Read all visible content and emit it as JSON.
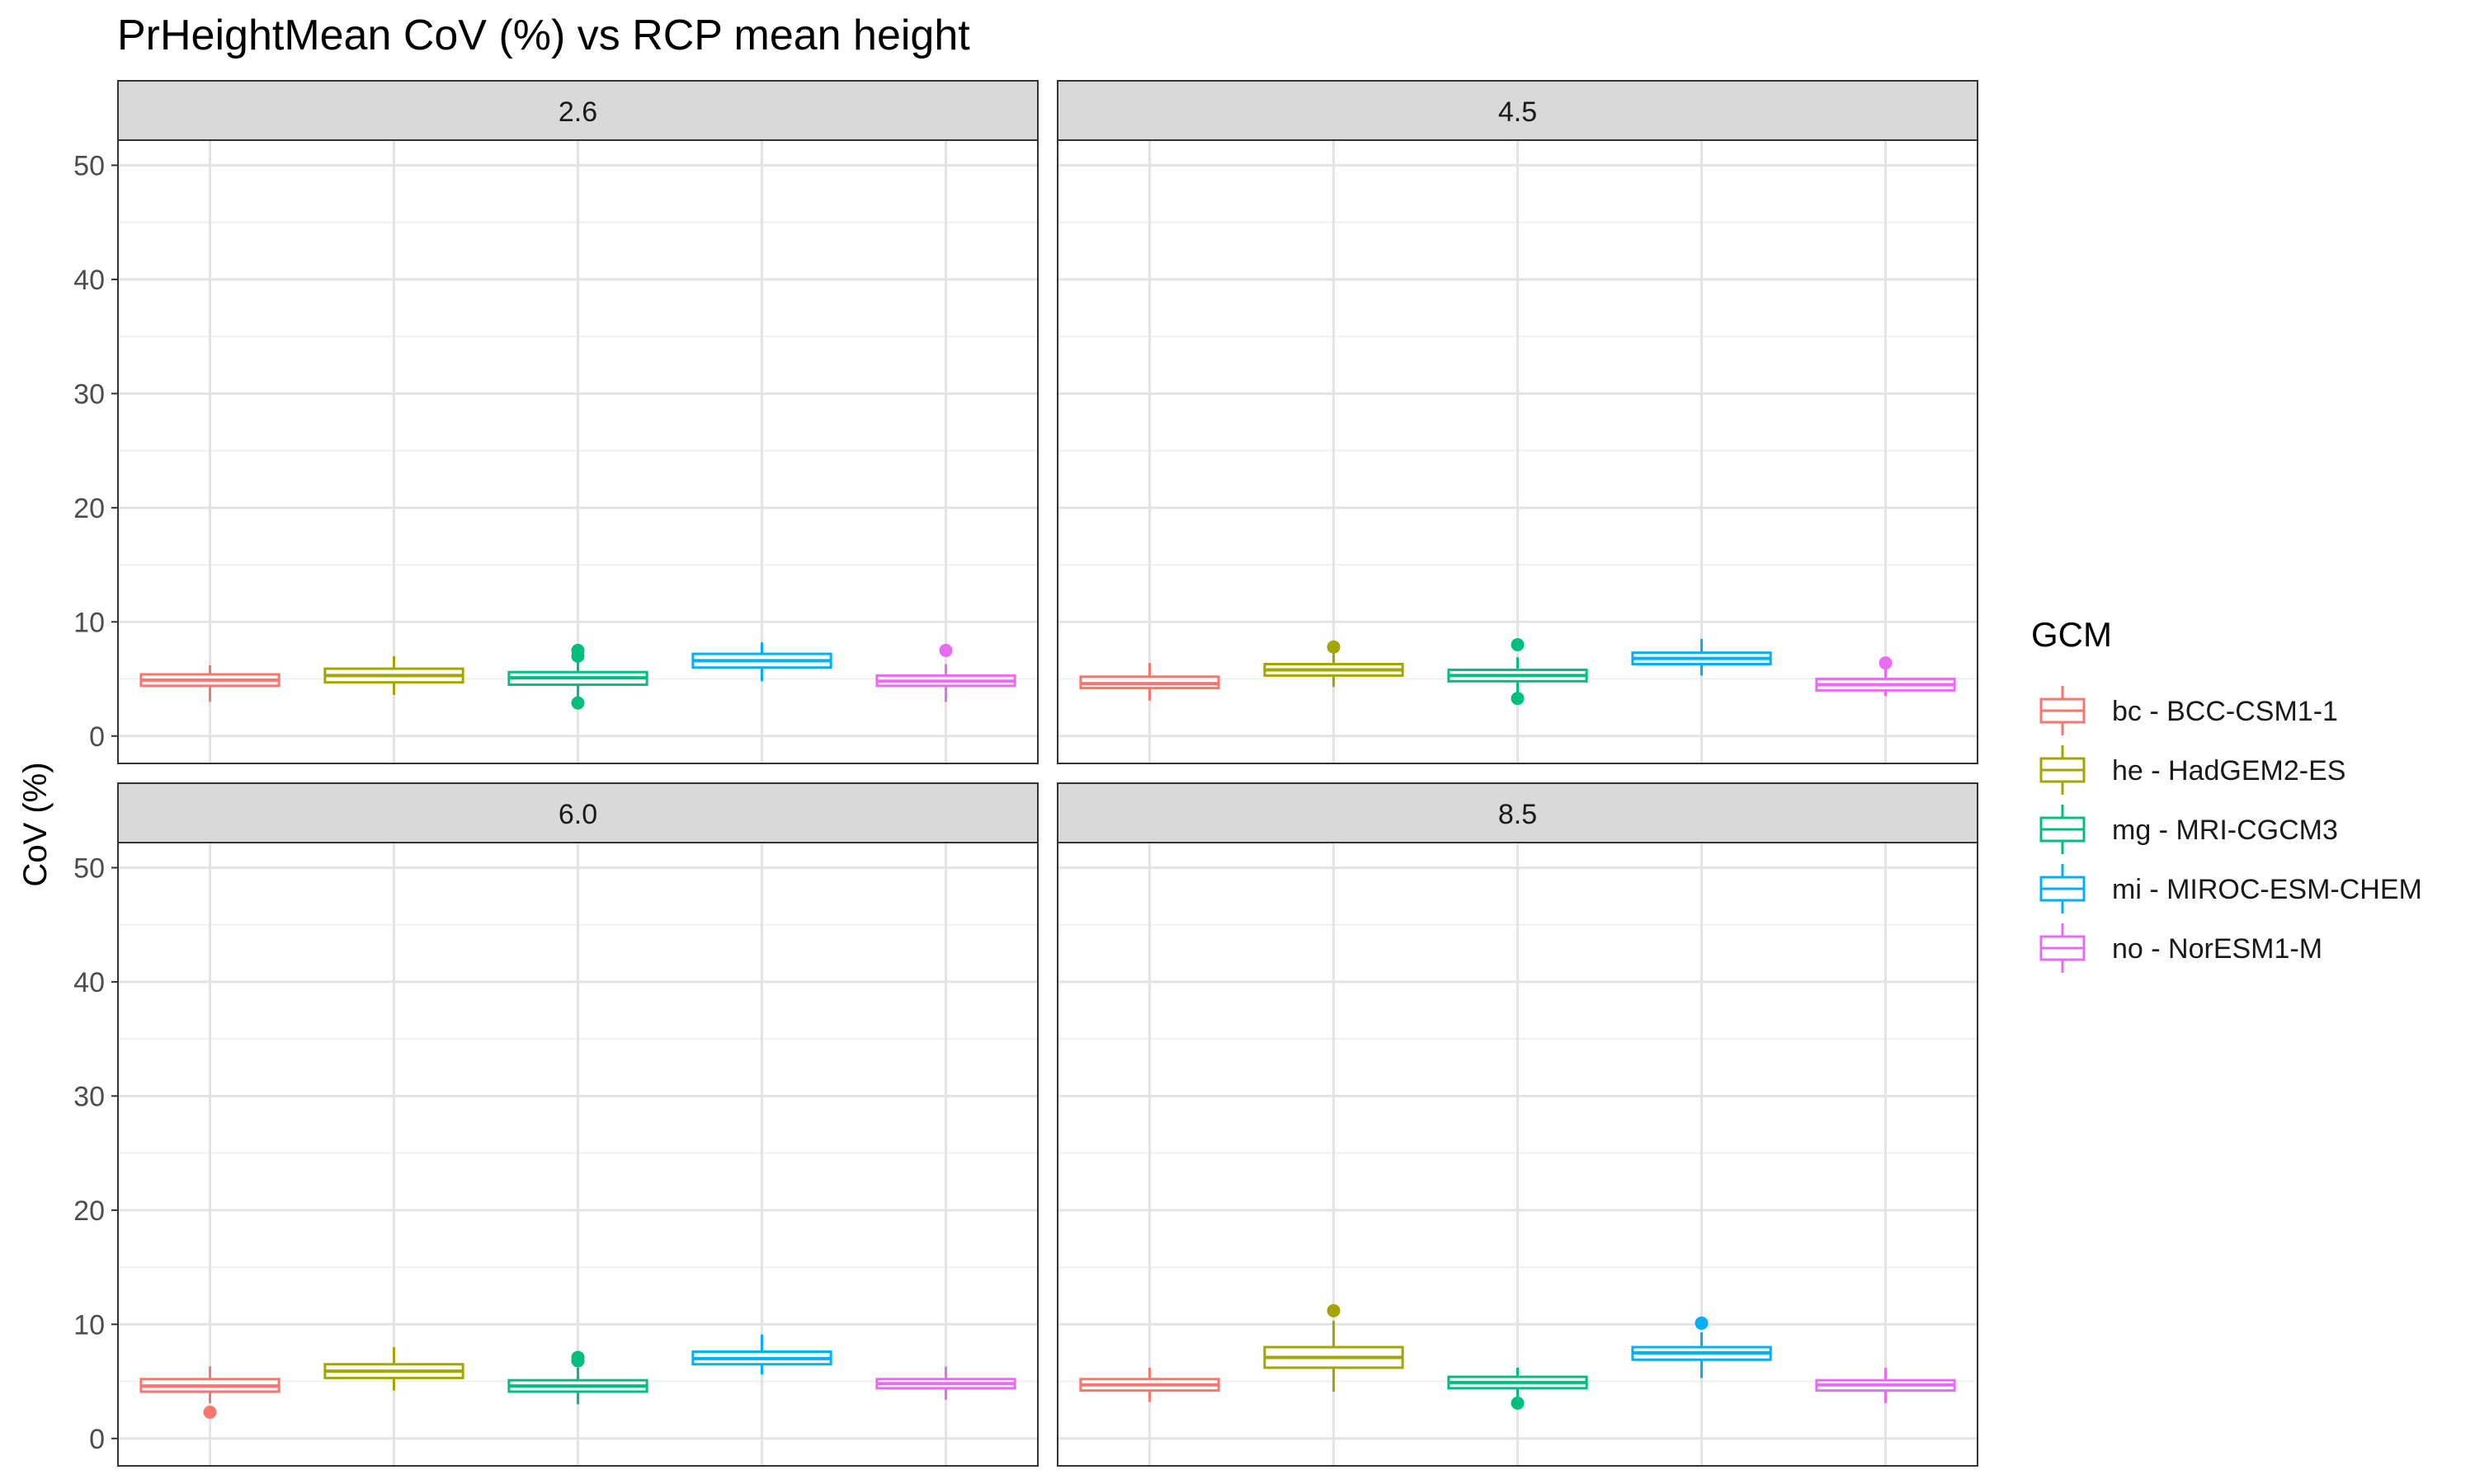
{
  "chart_data": {
    "type": "boxplot",
    "title": "PrHeightMean CoV (%) vs RCP mean height",
    "ylabel": "CoV (%)",
    "xlabel": "",
    "ylim": [
      -2.4,
      52.2
    ],
    "yticks": [
      0,
      10,
      20,
      30,
      40,
      50
    ],
    "ytick_labels": [
      "0",
      "10",
      "20",
      "30",
      "40",
      "50"
    ],
    "facet_layout": "2x2",
    "grid": true,
    "legend": {
      "title": "GCM",
      "placement": "right",
      "entries": [
        {
          "label": "bc - BCC-CSM1-1",
          "color": "#F8766D"
        },
        {
          "label": "he - HadGEM2-ES",
          "color": "#A3A500"
        },
        {
          "label": "mg - MRI-CGCM3",
          "color": "#00BF7D"
        },
        {
          "label": "mi - MIROC-ESM-CHEM",
          "color": "#00B0F6"
        },
        {
          "label": "no - NorESM1-M",
          "color": "#E76BF3"
        }
      ]
    },
    "panels": [
      {
        "label": "2.6",
        "boxes": [
          {
            "series": "bc - BCC-CSM1-1",
            "lower_whisker": 3.0,
            "q1": 4.4,
            "median": 4.9,
            "q3": 5.4,
            "upper_whisker": 6.2,
            "outliers": []
          },
          {
            "series": "he - HadGEM2-ES",
            "lower_whisker": 3.6,
            "q1": 4.7,
            "median": 5.3,
            "q3": 5.9,
            "upper_whisker": 7.0,
            "outliers": []
          },
          {
            "series": "mg - MRI-CGCM3",
            "lower_whisker": 3.4,
            "q1": 4.5,
            "median": 5.1,
            "q3": 5.6,
            "upper_whisker": 6.7,
            "outliers": [
              2.9,
              7.0,
              7.5
            ]
          },
          {
            "series": "mi - MIROC-ESM-CHEM",
            "lower_whisker": 4.8,
            "q1": 6.0,
            "median": 6.6,
            "q3": 7.2,
            "upper_whisker": 8.2,
            "outliers": []
          },
          {
            "series": "no - NorESM1-M",
            "lower_whisker": 3.0,
            "q1": 4.4,
            "median": 4.8,
            "q3": 5.3,
            "upper_whisker": 6.3,
            "outliers": [
              7.5
            ]
          }
        ]
      },
      {
        "label": "4.5",
        "boxes": [
          {
            "series": "bc - BCC-CSM1-1",
            "lower_whisker": 3.1,
            "q1": 4.2,
            "median": 4.6,
            "q3": 5.2,
            "upper_whisker": 6.4,
            "outliers": []
          },
          {
            "series": "he - HadGEM2-ES",
            "lower_whisker": 4.3,
            "q1": 5.3,
            "median": 5.8,
            "q3": 6.3,
            "upper_whisker": 7.3,
            "outliers": [
              7.8
            ]
          },
          {
            "series": "mg - MRI-CGCM3",
            "lower_whisker": 3.8,
            "q1": 4.8,
            "median": 5.3,
            "q3": 5.8,
            "upper_whisker": 6.9,
            "outliers": [
              3.3,
              8.0
            ]
          },
          {
            "series": "mi - MIROC-ESM-CHEM",
            "lower_whisker": 5.3,
            "q1": 6.3,
            "median": 6.8,
            "q3": 7.3,
            "upper_whisker": 8.5,
            "outliers": []
          },
          {
            "series": "no - NorESM1-M",
            "lower_whisker": 3.5,
            "q1": 4.0,
            "median": 4.5,
            "q3": 5.0,
            "upper_whisker": 5.9,
            "outliers": [
              6.4
            ]
          }
        ]
      },
      {
        "label": "6.0",
        "boxes": [
          {
            "series": "bc - BCC-CSM1-1",
            "lower_whisker": 3.1,
            "q1": 4.1,
            "median": 4.6,
            "q3": 5.2,
            "upper_whisker": 6.3,
            "outliers": [
              2.3
            ]
          },
          {
            "series": "he - HadGEM2-ES",
            "lower_whisker": 4.2,
            "q1": 5.3,
            "median": 5.9,
            "q3": 6.5,
            "upper_whisker": 8.0,
            "outliers": []
          },
          {
            "series": "mg - MRI-CGCM3",
            "lower_whisker": 3.0,
            "q1": 4.1,
            "median": 4.6,
            "q3": 5.1,
            "upper_whisker": 6.2,
            "outliers": [
              6.8,
              7.1
            ]
          },
          {
            "series": "mi - MIROC-ESM-CHEM",
            "lower_whisker": 5.6,
            "q1": 6.5,
            "median": 7.0,
            "q3": 7.6,
            "upper_whisker": 9.1,
            "outliers": []
          },
          {
            "series": "no - NorESM1-M",
            "lower_whisker": 3.4,
            "q1": 4.4,
            "median": 4.8,
            "q3": 5.2,
            "upper_whisker": 6.3,
            "outliers": []
          }
        ]
      },
      {
        "label": "8.5",
        "boxes": [
          {
            "series": "bc - BCC-CSM1-1",
            "lower_whisker": 3.2,
            "q1": 4.2,
            "median": 4.7,
            "q3": 5.2,
            "upper_whisker": 6.2,
            "outliers": []
          },
          {
            "series": "he - HadGEM2-ES",
            "lower_whisker": 4.1,
            "q1": 6.2,
            "median": 7.1,
            "q3": 8.0,
            "upper_whisker": 10.3,
            "outliers": [
              11.2
            ]
          },
          {
            "series": "mg - MRI-CGCM3",
            "lower_whisker": 3.6,
            "q1": 4.4,
            "median": 4.9,
            "q3": 5.4,
            "upper_whisker": 6.2,
            "outliers": [
              3.1
            ]
          },
          {
            "series": "mi - MIROC-ESM-CHEM",
            "lower_whisker": 5.3,
            "q1": 6.9,
            "median": 7.5,
            "q3": 8.0,
            "upper_whisker": 9.3,
            "outliers": [
              10.1
            ]
          },
          {
            "series": "no - NorESM1-M",
            "lower_whisker": 3.1,
            "q1": 4.2,
            "median": 4.7,
            "q3": 5.1,
            "upper_whisker": 6.2,
            "outliers": []
          }
        ]
      }
    ]
  }
}
